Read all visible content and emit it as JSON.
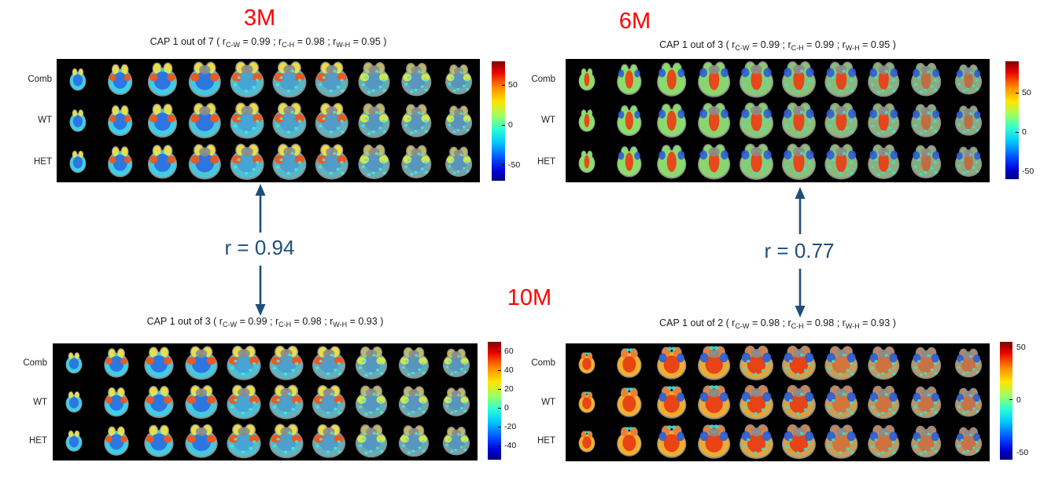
{
  "ages": {
    "top_left": "3M",
    "top_right": "6M",
    "middle": "10M"
  },
  "connectors": [
    {
      "from": "3M",
      "to": "10M",
      "label": "r = 0.94"
    },
    {
      "from": "6M",
      "to": "10M",
      "label": "r = 0.77"
    }
  ],
  "colors": {
    "age_label": "#ff0000",
    "connector": "#1f4e79",
    "panel_bg": "#000000",
    "brain_gray": "#8b8b8b"
  },
  "panels": [
    {
      "id": "3m",
      "age": "3M",
      "title": {
        "cap": "CAP 1 out of 7 ( r",
        "sub1": "C-W",
        "mid1": " = 0.99 ; r",
        "sub2": "C-H",
        "mid2": " = 0.98 ; r",
        "sub3": "W-H",
        "mid3": " = 0.95 )"
      },
      "rows": [
        "Comb",
        "WT",
        "HET"
      ],
      "n_slices": 10,
      "style": "cool",
      "palette": {
        "body": "#3ecfe8",
        "center": "#2a6de0",
        "bulb": "#f2e344",
        "hot": "#f0561a",
        "late_hot": "#d9e844",
        "blue": "#2d5fd6",
        "speckle": "#4ae8dc"
      },
      "colorbar": {
        "ticks": [
          50,
          0,
          -50
        ],
        "range": [
          -70,
          80
        ]
      }
    },
    {
      "id": "6m",
      "age": "6M",
      "title": {
        "cap": "CAP 1 out of 3 ( r",
        "sub1": "C-W",
        "mid1": " = 0.99 ; r",
        "sub2": "C-H",
        "mid2": " = 0.99 ; r",
        "sub3": "W-H",
        "mid3": " = 0.95 )"
      },
      "rows": [
        "Comb",
        "WT",
        "HET"
      ],
      "n_slices": 10,
      "style": "green-red",
      "palette": {
        "body": "#8adf6a",
        "center": "#ef3a12",
        "bulb": "#8adf6a",
        "hot": "#f2a93b",
        "late_hot": "#e8d23c",
        "blue": "#2d5fd6",
        "speckle": "#46e0c8"
      },
      "colorbar": {
        "ticks": [
          50,
          0,
          -50
        ],
        "range": [
          -60,
          90
        ]
      }
    },
    {
      "id": "10m-left",
      "age": "10M",
      "title": {
        "cap": "CAP 1 out of 3 ( r",
        "sub1": "C-W",
        "mid1": " = 0.99 ; r",
        "sub2": "C-H",
        "mid2": " = 0.98 ; r",
        "sub3": "W-H",
        "mid3": " = 0.93 )"
      },
      "rows": [
        "Comb",
        "WT",
        "HET"
      ],
      "n_slices": 10,
      "style": "cool",
      "palette": {
        "body": "#3ecfe8",
        "center": "#2a6de0",
        "bulb": "#f2e344",
        "hot": "#f0561a",
        "late_hot": "#d9e844",
        "blue": "#2d5fd6",
        "speckle": "#4ae8dc"
      },
      "colorbar": {
        "ticks": [
          60,
          40,
          20,
          0,
          -20,
          -40
        ],
        "range": [
          -55,
          70
        ]
      }
    },
    {
      "id": "10m-right",
      "age": "10M",
      "title": {
        "cap": "CAP 1 out of 2 ( r",
        "sub1": "C-W",
        "mid1": " = 0.98 ; r",
        "sub2": "C-H",
        "mid2": " = 0.98 ; r",
        "sub3": "W-H",
        "mid3": " = 0.93 )"
      },
      "rows": [
        "Comb",
        "WT",
        "HET"
      ],
      "n_slices": 10,
      "style": "warm-blue",
      "palette": {
        "body": "#f6b02c",
        "center": "#e83812",
        "bulb": "#f08030",
        "hot": "#e83812",
        "late_hot": "#ffe14a",
        "blue": "#2d5fd6",
        "speckle": "#3fe3cf"
      },
      "colorbar": {
        "ticks": [
          50,
          0,
          -50
        ],
        "range": [
          -57,
          55
        ]
      }
    }
  ],
  "chart_data": [
    {
      "type": "heatmap",
      "age": "3M",
      "title": "CAP 1 out of 7 ( r_C-W = 0.99 ; r_C-H = 0.98 ; r_W-H = 0.95 )",
      "cap_index": 1,
      "caps_total": 7,
      "correlations": {
        "C-W": 0.99,
        "C-H": 0.98,
        "W-H": 0.95
      },
      "rows": [
        "Comb",
        "WT",
        "HET"
      ],
      "slices_per_row": 10,
      "colormap": "jet",
      "colorbar_ticks": [
        50,
        0,
        -50
      ],
      "colorbar_range_est": [
        -70,
        80
      ],
      "legend_position": "right"
    },
    {
      "type": "heatmap",
      "age": "6M",
      "title": "CAP 1 out of 3 ( r_C-W = 0.99 ; r_C-H = 0.99 ; r_W-H = 0.95 )",
      "cap_index": 1,
      "caps_total": 3,
      "correlations": {
        "C-W": 0.99,
        "C-H": 0.99,
        "W-H": 0.95
      },
      "rows": [
        "Comb",
        "WT",
        "HET"
      ],
      "slices_per_row": 10,
      "colormap": "jet",
      "colorbar_ticks": [
        50,
        0,
        -50
      ],
      "colorbar_range_est": [
        -60,
        90
      ],
      "legend_position": "right"
    },
    {
      "type": "heatmap",
      "age": "10M",
      "title": "CAP 1 out of 3 ( r_C-W = 0.99 ; r_C-H = 0.98 ; r_W-H = 0.93 )",
      "cap_index": 1,
      "caps_total": 3,
      "correlations": {
        "C-W": 0.99,
        "C-H": 0.98,
        "W-H": 0.93
      },
      "rows": [
        "Comb",
        "WT",
        "HET"
      ],
      "slices_per_row": 10,
      "colormap": "jet",
      "colorbar_ticks": [
        60,
        40,
        20,
        0,
        -20,
        -40
      ],
      "colorbar_range_est": [
        -55,
        70
      ],
      "legend_position": "right"
    },
    {
      "type": "heatmap",
      "age": "10M",
      "title": "CAP 1 out of 2 ( r_C-W = 0.98 ; r_C-H = 0.98 ; r_W-H = 0.93 )",
      "cap_index": 1,
      "caps_total": 2,
      "correlations": {
        "C-W": 0.98,
        "C-H": 0.98,
        "W-H": 0.93
      },
      "rows": [
        "Comb",
        "WT",
        "HET"
      ],
      "slices_per_row": 10,
      "colormap": "jet",
      "colorbar_ticks": [
        50,
        0,
        -50
      ],
      "colorbar_range_est": [
        -57,
        55
      ],
      "legend_position": "right"
    },
    {
      "type": "annotation",
      "between_age_correlations": [
        {
          "from": "3M",
          "to": "10M",
          "r": 0.94
        },
        {
          "from": "6M",
          "to": "10M",
          "r": 0.77
        }
      ]
    }
  ]
}
